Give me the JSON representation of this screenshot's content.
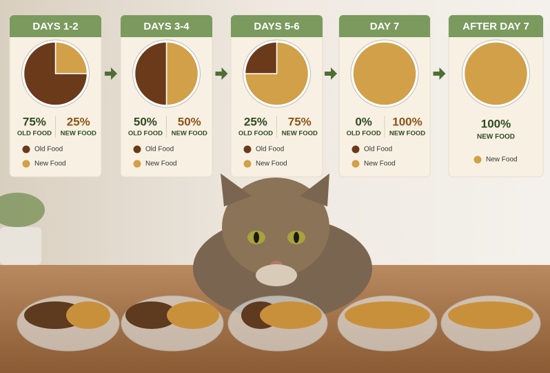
{
  "stages": [
    {
      "title": "DAYS 1-2",
      "old_value": 75,
      "old_label": "75%",
      "old_caption": "OLD FOOD",
      "new_value": 25,
      "new_label": "25%",
      "new_caption": "NEW FOOD",
      "legend": [
        "Old Food",
        "New Food"
      ]
    },
    {
      "title": "DAYS 3-4",
      "old_value": 50,
      "old_label": "50%",
      "old_caption": "OLD FOOD",
      "new_value": 50,
      "new_label": "50%",
      "new_caption": "NEW FOOD",
      "legend": [
        "Old Food",
        "New Food"
      ]
    },
    {
      "title": "DAYS 5-6",
      "old_value": 25,
      "old_label": "25%",
      "old_caption": "OLD FOOD",
      "new_value": 75,
      "new_label": "75%",
      "new_caption": "NEW FOOD",
      "legend": [
        "Old Food",
        "New Food"
      ]
    },
    {
      "title": "DAY 7",
      "old_value": 0,
      "old_label": "0%",
      "old_caption": "OLD FOOD",
      "new_value": 100,
      "new_label": "100%",
      "new_caption": "NEW FOOD",
      "legend": [
        "Old Food",
        "New Food"
      ]
    },
    {
      "title": "AFTER DAY 7",
      "new_value": 100,
      "new_label": "100%",
      "new_caption": "NEW FOOD",
      "legend": [
        "New Food"
      ]
    }
  ]
}
